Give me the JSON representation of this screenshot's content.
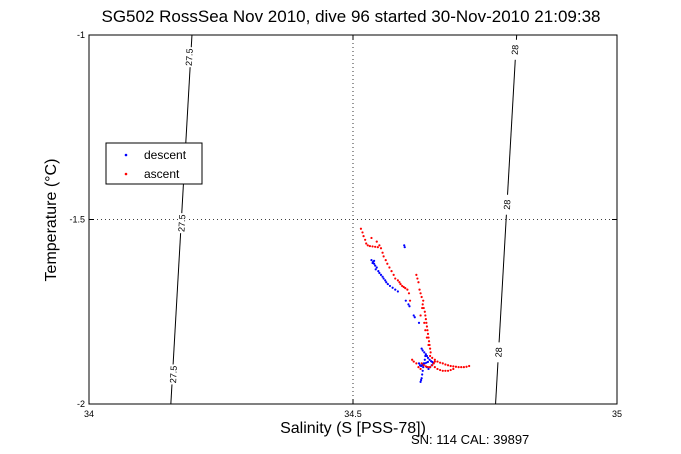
{
  "chart_data": {
    "type": "scatter",
    "title": "SG502 RossSea Nov 2010, dive 96 started 30-Nov-2010 21:09:38",
    "xlabel": "Salinity (S [PSS-78])",
    "ylabel": "Temperature (°C)",
    "xlim": [
      34,
      35
    ],
    "ylim": [
      -2,
      -1
    ],
    "x_ticks": [
      "34",
      "34.5",
      "35"
    ],
    "y_ticks": [
      "-1",
      "-1.5",
      "-2"
    ],
    "grid": "dotted at 34.5 and -1.5",
    "legend_position": "left",
    "footer": "SN: 114  CAL: 39897",
    "density_contours": [
      {
        "label": "27.5",
        "points": [
          [
            34.195,
            -1.0
          ],
          [
            34.155,
            -2.0
          ]
        ],
        "label_positions": [
          [
            34.19,
            -1.06
          ],
          [
            34.176,
            -1.51
          ],
          [
            34.16,
            -1.92
          ]
        ]
      },
      {
        "label": "28",
        "points": [
          [
            34.81,
            -1.0
          ],
          [
            34.77,
            -2.0
          ]
        ],
        "label_positions": [
          [
            34.807,
            -1.04
          ],
          [
            34.792,
            -1.46
          ],
          [
            34.776,
            -1.86
          ]
        ]
      }
    ],
    "series": [
      {
        "name": "descent",
        "color": "#0000ff",
        "points": [
          [
            34.535,
            -1.61
          ],
          [
            34.538,
            -1.615
          ],
          [
            34.54,
            -1.62
          ],
          [
            34.542,
            -1.625
          ],
          [
            34.545,
            -1.63
          ],
          [
            34.54,
            -1.612
          ],
          [
            34.537,
            -1.618
          ],
          [
            34.543,
            -1.635
          ],
          [
            34.548,
            -1.64
          ],
          [
            34.55,
            -1.645
          ],
          [
            34.553,
            -1.65
          ],
          [
            34.556,
            -1.655
          ],
          [
            34.558,
            -1.66
          ],
          [
            34.561,
            -1.665
          ],
          [
            34.563,
            -1.67
          ],
          [
            34.566,
            -1.675
          ],
          [
            34.57,
            -1.68
          ],
          [
            34.575,
            -1.685
          ],
          [
            34.58,
            -1.69
          ],
          [
            34.585,
            -1.695
          ],
          [
            34.597,
            -1.57
          ],
          [
            34.598,
            -1.575
          ],
          [
            34.6,
            -1.72
          ],
          [
            34.605,
            -1.73
          ],
          [
            34.607,
            -1.735
          ],
          [
            34.615,
            -1.76
          ],
          [
            34.617,
            -1.765
          ],
          [
            34.625,
            -1.78
          ],
          [
            34.63,
            -1.85
          ],
          [
            34.632,
            -1.855
          ],
          [
            34.635,
            -1.86
          ],
          [
            34.638,
            -1.865
          ],
          [
            34.64,
            -1.87
          ],
          [
            34.642,
            -1.875
          ],
          [
            34.645,
            -1.88
          ],
          [
            34.648,
            -1.884
          ],
          [
            34.65,
            -1.886
          ],
          [
            34.652,
            -1.888
          ],
          [
            34.637,
            -1.87
          ],
          [
            34.636,
            -1.88
          ],
          [
            34.634,
            -1.89
          ],
          [
            34.633,
            -1.9
          ],
          [
            34.632,
            -1.91
          ],
          [
            34.631,
            -1.92
          ],
          [
            34.63,
            -1.93
          ],
          [
            34.629,
            -1.935
          ],
          [
            34.628,
            -1.94
          ],
          [
            34.625,
            -1.89
          ],
          [
            34.627,
            -1.895
          ],
          [
            34.629,
            -1.897
          ],
          [
            34.631,
            -1.895
          ],
          [
            34.633,
            -1.893
          ],
          [
            34.636,
            -1.89
          ],
          [
            34.639,
            -1.888
          ],
          [
            34.642,
            -1.886
          ],
          [
            34.64,
            -1.9
          ],
          [
            34.643,
            -1.905
          ],
          [
            34.646,
            -1.9
          ],
          [
            34.649,
            -1.895
          ],
          [
            34.652,
            -1.89
          ]
        ]
      },
      {
        "name": "ascent",
        "color": "#ff0000",
        "points": [
          [
            34.515,
            -1.525
          ],
          [
            34.518,
            -1.535
          ],
          [
            34.52,
            -1.545
          ],
          [
            34.523,
            -1.555
          ],
          [
            34.525,
            -1.565
          ],
          [
            34.528,
            -1.57
          ],
          [
            34.532,
            -1.572
          ],
          [
            34.537,
            -1.573
          ],
          [
            34.542,
            -1.574
          ],
          [
            34.547,
            -1.575
          ],
          [
            34.553,
            -1.578
          ],
          [
            34.556,
            -1.59
          ],
          [
            34.558,
            -1.6
          ],
          [
            34.562,
            -1.61
          ],
          [
            34.565,
            -1.62
          ],
          [
            34.569,
            -1.63
          ],
          [
            34.573,
            -1.64
          ],
          [
            34.577,
            -1.65
          ],
          [
            34.58,
            -1.66
          ],
          [
            34.585,
            -1.665
          ],
          [
            34.588,
            -1.67
          ],
          [
            34.59,
            -1.675
          ],
          [
            34.593,
            -1.68
          ],
          [
            34.596,
            -1.683
          ],
          [
            34.599,
            -1.686
          ],
          [
            34.603,
            -1.69
          ],
          [
            34.606,
            -1.7
          ],
          [
            34.608,
            -1.72
          ],
          [
            34.62,
            -1.65
          ],
          [
            34.622,
            -1.66
          ],
          [
            34.624,
            -1.67
          ],
          [
            34.626,
            -1.69
          ],
          [
            34.628,
            -1.7
          ],
          [
            34.63,
            -1.71
          ],
          [
            34.632,
            -1.73
          ],
          [
            34.634,
            -1.74
          ],
          [
            34.636,
            -1.75
          ],
          [
            34.637,
            -1.76
          ],
          [
            34.638,
            -1.77
          ],
          [
            34.639,
            -1.78
          ],
          [
            34.64,
            -1.79
          ],
          [
            34.641,
            -1.8
          ],
          [
            34.642,
            -1.81
          ],
          [
            34.643,
            -1.82
          ],
          [
            34.644,
            -1.83
          ],
          [
            34.645,
            -1.84
          ],
          [
            34.646,
            -1.85
          ],
          [
            34.647,
            -1.86
          ],
          [
            34.633,
            -1.72
          ],
          [
            34.631,
            -1.74
          ],
          [
            34.628,
            -1.76
          ],
          [
            34.635,
            -1.78
          ],
          [
            34.637,
            -1.8
          ],
          [
            34.64,
            -1.82
          ],
          [
            34.643,
            -1.84
          ],
          [
            34.646,
            -1.87
          ],
          [
            34.65,
            -1.875
          ],
          [
            34.655,
            -1.88
          ],
          [
            34.66,
            -1.885
          ],
          [
            34.665,
            -1.888
          ],
          [
            34.67,
            -1.89
          ],
          [
            34.675,
            -1.893
          ],
          [
            34.68,
            -1.895
          ],
          [
            34.685,
            -1.897
          ],
          [
            34.69,
            -1.898
          ],
          [
            34.695,
            -1.899
          ],
          [
            34.7,
            -1.9
          ],
          [
            34.705,
            -1.9
          ],
          [
            34.71,
            -1.9
          ],
          [
            34.715,
            -1.899
          ],
          [
            34.72,
            -1.897
          ],
          [
            34.655,
            -1.9
          ],
          [
            34.66,
            -1.905
          ],
          [
            34.665,
            -1.908
          ],
          [
            34.67,
            -1.91
          ],
          [
            34.675,
            -1.91
          ],
          [
            34.68,
            -1.91
          ],
          [
            34.685,
            -1.908
          ],
          [
            34.69,
            -1.905
          ],
          [
            34.63,
            -1.89
          ],
          [
            34.634,
            -1.895
          ],
          [
            34.638,
            -1.898
          ],
          [
            34.642,
            -1.9
          ],
          [
            34.646,
            -1.9
          ],
          [
            34.65,
            -1.895
          ],
          [
            34.653,
            -1.89
          ],
          [
            34.655,
            -1.885
          ],
          [
            34.612,
            -1.88
          ],
          [
            34.615,
            -1.885
          ],
          [
            34.62,
            -1.89
          ],
          [
            34.624,
            -1.9
          ],
          [
            34.628,
            -1.905
          ],
          [
            34.545,
            -1.56
          ],
          [
            34.55,
            -1.57
          ],
          [
            34.535,
            -1.55
          ]
        ]
      }
    ]
  }
}
